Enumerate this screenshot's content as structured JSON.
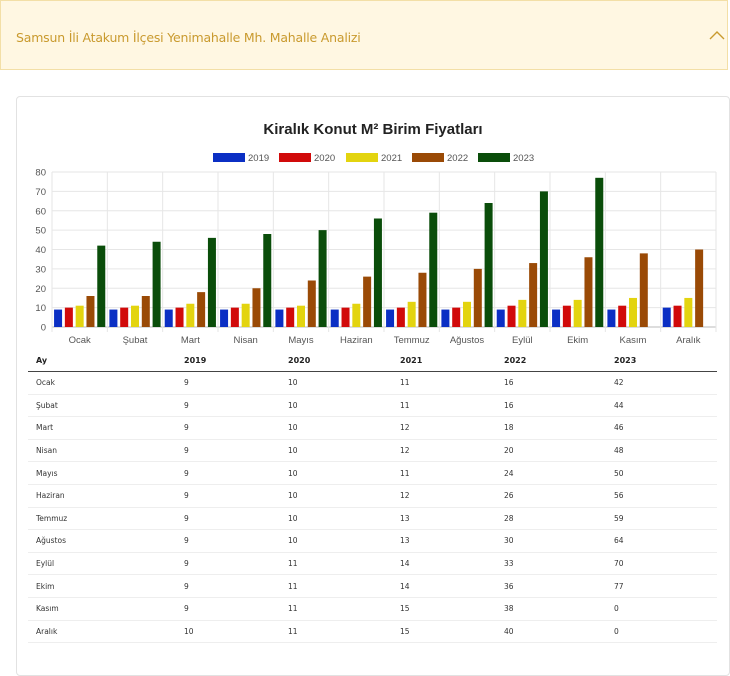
{
  "accordion": {
    "title": "Samsun İli Atakum İlçesi Yenimahalle Mh. Mahalle Analizi",
    "icon": "chevron-up-icon",
    "text_color": "#c99a2e",
    "background": "#fff7e2"
  },
  "chart_data": {
    "type": "bar",
    "title": "Kiralık Konut M² Birim Fiyatları",
    "categories": [
      "Ocak",
      "Şubat",
      "Mart",
      "Nisan",
      "Mayıs",
      "Haziran",
      "Temmuz",
      "Ağustos",
      "Eylül",
      "Ekim",
      "Kasım",
      "Aralık"
    ],
    "series": [
      {
        "name": "2019",
        "color": "#0b2fc4",
        "values": [
          9,
          9,
          9,
          9,
          9,
          9,
          9,
          9,
          9,
          9,
          9,
          10
        ]
      },
      {
        "name": "2020",
        "color": "#d10a0a",
        "values": [
          10,
          10,
          10,
          10,
          10,
          10,
          10,
          10,
          11,
          11,
          11,
          11
        ]
      },
      {
        "name": "2021",
        "color": "#e3d40f",
        "values": [
          11,
          11,
          12,
          12,
          11,
          12,
          13,
          13,
          14,
          14,
          15,
          15
        ]
      },
      {
        "name": "2022",
        "color": "#9a4a06",
        "values": [
          16,
          16,
          18,
          20,
          24,
          26,
          28,
          30,
          33,
          36,
          38,
          40
        ]
      },
      {
        "name": "2023",
        "color": "#0a4d0a",
        "values": [
          42,
          44,
          46,
          48,
          50,
          56,
          59,
          64,
          70,
          77,
          0,
          0
        ]
      }
    ],
    "ylim": [
      0,
      80
    ],
    "yticks": [
      0,
      10,
      20,
      30,
      40,
      50,
      60,
      70,
      80
    ],
    "xlabel": "",
    "ylabel": "",
    "grid": true,
    "legend": "top-center"
  },
  "table": {
    "headers": [
      "Ay",
      "2019",
      "2020",
      "2021",
      "2022",
      "2023"
    ],
    "rows": [
      [
        "Ocak",
        "9",
        "10",
        "11",
        "16",
        "42"
      ],
      [
        "Şubat",
        "9",
        "10",
        "11",
        "16",
        "44"
      ],
      [
        "Mart",
        "9",
        "10",
        "12",
        "18",
        "46"
      ],
      [
        "Nisan",
        "9",
        "10",
        "12",
        "20",
        "48"
      ],
      [
        "Mayıs",
        "9",
        "10",
        "11",
        "24",
        "50"
      ],
      [
        "Haziran",
        "9",
        "10",
        "12",
        "26",
        "56"
      ],
      [
        "Temmuz",
        "9",
        "10",
        "13",
        "28",
        "59"
      ],
      [
        "Ağustos",
        "9",
        "10",
        "13",
        "30",
        "64"
      ],
      [
        "Eylül",
        "9",
        "11",
        "14",
        "33",
        "70"
      ],
      [
        "Ekim",
        "9",
        "11",
        "14",
        "36",
        "77"
      ],
      [
        "Kasım",
        "9",
        "11",
        "15",
        "38",
        "0"
      ],
      [
        "Aralık",
        "10",
        "11",
        "15",
        "40",
        "0"
      ]
    ]
  }
}
